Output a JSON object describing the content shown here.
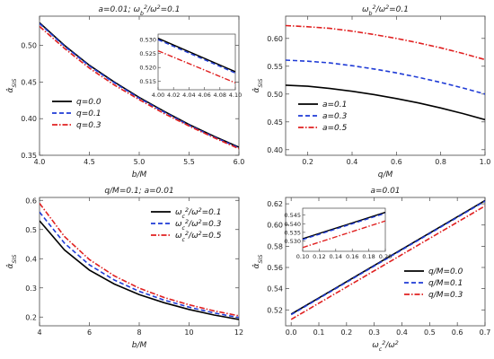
{
  "chart_data": [
    {
      "type": "line",
      "title": "a=0.01;   ω_b²/ω²=0.1",
      "xlabel": "b/M",
      "ylabel": "α̂_SIS",
      "xlim": [
        4.0,
        6.0
      ],
      "ylim": [
        0.35,
        0.54
      ],
      "xticks": [
        "4.0",
        "4.5",
        "5.0",
        "5.5",
        "6.0"
      ],
      "yticks": [
        "0.35",
        "0.40",
        "0.45",
        "0.50"
      ],
      "legend": "bottom-left",
      "series": [
        {
          "name": "q=0.0",
          "color": "#000000",
          "dash": "solid",
          "x": [
            4.0,
            4.25,
            4.5,
            4.75,
            5.0,
            5.25,
            5.5,
            5.75,
            6.0
          ],
          "y": [
            0.531,
            0.5,
            0.473,
            0.45,
            0.429,
            0.41,
            0.392,
            0.376,
            0.361
          ]
        },
        {
          "name": "q=0.1",
          "color": "#1f3bd6",
          "dash": "dashed",
          "x": [
            4.0,
            4.25,
            4.5,
            4.75,
            5.0,
            5.25,
            5.5,
            5.75,
            6.0
          ],
          "y": [
            0.53,
            0.499,
            0.472,
            0.449,
            0.428,
            0.409,
            0.391,
            0.375,
            0.36
          ]
        },
        {
          "name": "q=0.3",
          "color": "#e02020",
          "dash": "dashdot",
          "x": [
            4.0,
            4.25,
            4.5,
            4.75,
            5.0,
            5.25,
            5.5,
            5.75,
            6.0
          ],
          "y": [
            0.526,
            0.496,
            0.469,
            0.446,
            0.426,
            0.407,
            0.39,
            0.374,
            0.359
          ]
        }
      ],
      "inset": {
        "xlim": [
          4.0,
          4.1
        ],
        "ylim": [
          0.512,
          0.532
        ],
        "xticks": [
          "4.00",
          "4.02",
          "4.04",
          "4.06",
          "4.08",
          "4.10"
        ],
        "yticks": [
          "0.515",
          "0.520",
          "0.525",
          "0.530"
        ],
        "series": [
          {
            "color": "#000000",
            "dash": "solid",
            "x": [
              4.0,
              4.1
            ],
            "y": [
              0.5305,
              0.5185
            ]
          },
          {
            "color": "#1f3bd6",
            "dash": "dashed",
            "x": [
              4.0,
              4.1
            ],
            "y": [
              0.53,
              0.518
            ]
          },
          {
            "color": "#e02020",
            "dash": "dashdot",
            "x": [
              4.0,
              4.1
            ],
            "y": [
              0.526,
              0.5145
            ]
          }
        ]
      }
    },
    {
      "type": "line",
      "title": "ω_b²/ω²=0.1",
      "xlabel": "q/M",
      "ylabel": "α̂_SIS",
      "xlim": [
        0.1,
        1.0
      ],
      "ylim": [
        0.39,
        0.64
      ],
      "xticks": [
        "0.2",
        "0.4",
        "0.6",
        "0.8",
        "1.0"
      ],
      "yticks": [
        "0.40",
        "0.45",
        "0.50",
        "0.55",
        "0.60"
      ],
      "legend": "bottom-left",
      "series": [
        {
          "name": "a=0.1",
          "color": "#000000",
          "dash": "solid",
          "x": [
            0.1,
            0.2,
            0.3,
            0.4,
            0.5,
            0.6,
            0.7,
            0.8,
            0.9,
            1.0
          ],
          "y": [
            0.516,
            0.514,
            0.51,
            0.505,
            0.499,
            0.492,
            0.484,
            0.475,
            0.465,
            0.454
          ]
        },
        {
          "name": "a=0.3",
          "color": "#1f3bd6",
          "dash": "dashed",
          "x": [
            0.1,
            0.2,
            0.3,
            0.4,
            0.5,
            0.6,
            0.7,
            0.8,
            0.9,
            1.0
          ],
          "y": [
            0.561,
            0.559,
            0.556,
            0.551,
            0.545,
            0.538,
            0.53,
            0.521,
            0.511,
            0.5
          ]
        },
        {
          "name": "a=0.5",
          "color": "#e02020",
          "dash": "dashdot",
          "x": [
            0.1,
            0.2,
            0.3,
            0.4,
            0.5,
            0.6,
            0.7,
            0.8,
            0.9,
            1.0
          ],
          "y": [
            0.623,
            0.621,
            0.618,
            0.613,
            0.607,
            0.6,
            0.592,
            0.583,
            0.573,
            0.562
          ]
        }
      ]
    },
    {
      "type": "line",
      "title": "q/M=0.1;   a=0.01",
      "xlabel": "b/M",
      "ylabel": "α̂_SIS",
      "xlim": [
        4.0,
        12.0
      ],
      "ylim": [
        0.17,
        0.61
      ],
      "xticks": [
        "4",
        "6",
        "8",
        "10",
        "12"
      ],
      "yticks": [
        "0.2",
        "0.3",
        "0.4",
        "0.5",
        "0.6"
      ],
      "legend": "top-right",
      "series": [
        {
          "name": "ω_c²/ω²=0.1",
          "color": "#000000",
          "dash": "solid",
          "x": [
            4,
            5,
            6,
            7,
            8,
            9,
            10,
            11,
            12
          ],
          "y": [
            0.53,
            0.43,
            0.361,
            0.313,
            0.277,
            0.249,
            0.226,
            0.207,
            0.192
          ]
        },
        {
          "name": "ω_c²/ω²=0.3",
          "color": "#1f3bd6",
          "dash": "dashed",
          "x": [
            4,
            5,
            6,
            7,
            8,
            9,
            10,
            11,
            12
          ],
          "y": [
            0.56,
            0.453,
            0.379,
            0.327,
            0.288,
            0.258,
            0.234,
            0.214,
            0.198
          ]
        },
        {
          "name": "ω_c²/ω²=0.5",
          "color": "#e02020",
          "dash": "dashdot",
          "x": [
            4,
            5,
            6,
            7,
            8,
            9,
            10,
            11,
            12
          ],
          "y": [
            0.59,
            0.476,
            0.397,
            0.341,
            0.299,
            0.267,
            0.242,
            0.221,
            0.204
          ]
        }
      ]
    },
    {
      "type": "line",
      "title": "a=0.01",
      "xlabel": "ω_c²/ω²",
      "ylabel": "α̂_SIS",
      "xlim": [
        -0.02,
        0.7
      ],
      "ylim": [
        0.505,
        0.626
      ],
      "xticks": [
        "0.0",
        "0.1",
        "0.2",
        "0.3",
        "0.4",
        "0.5",
        "0.6",
        "0.7"
      ],
      "yticks": [
        "0.52",
        "0.54",
        "0.56",
        "0.58",
        "0.60",
        "0.62"
      ],
      "legend": "bottom-right",
      "series": [
        {
          "name": "q/M=0.0",
          "color": "#000000",
          "dash": "solid",
          "x": [
            0.0,
            0.7
          ],
          "y": [
            0.516,
            0.623
          ]
        },
        {
          "name": "q/M=0.1",
          "color": "#1f3bd6",
          "dash": "dashed",
          "x": [
            0.0,
            0.7
          ],
          "y": [
            0.5155,
            0.6225
          ]
        },
        {
          "name": "q/M=0.3",
          "color": "#e02020",
          "dash": "dashdot",
          "x": [
            0.0,
            0.7
          ],
          "y": [
            0.511,
            0.618
          ]
        }
      ],
      "inset": {
        "xlim": [
          0.1,
          0.2
        ],
        "ylim": [
          0.524,
          0.549
        ],
        "xticks": [
          "0.10",
          "0.12",
          "0.14",
          "0.16",
          "0.18",
          "0.20"
        ],
        "yticks": [
          "0.530",
          "0.535",
          "0.540",
          "0.545"
        ],
        "series": [
          {
            "color": "#000000",
            "dash": "solid",
            "x": [
              0.1,
              0.2
            ],
            "y": [
              0.5313,
              0.5466
            ]
          },
          {
            "color": "#1f3bd6",
            "dash": "dashed",
            "x": [
              0.1,
              0.2
            ],
            "y": [
              0.5308,
              0.5461
            ]
          },
          {
            "color": "#e02020",
            "dash": "dashdot",
            "x": [
              0.1,
              0.2
            ],
            "y": [
              0.5262,
              0.5416
            ]
          }
        ]
      }
    }
  ]
}
